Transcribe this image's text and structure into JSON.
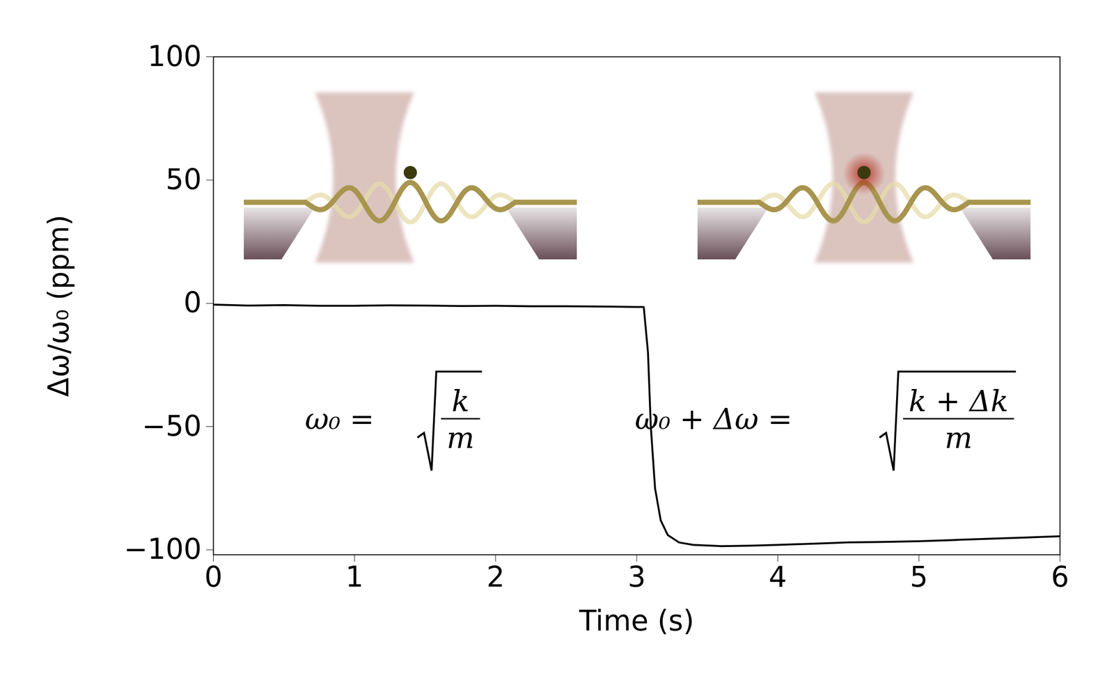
{
  "chart_data": {
    "type": "line",
    "xlabel": "Time (s)",
    "ylabel": "Δω/ω₀ (ppm)",
    "xlim": [
      0,
      6
    ],
    "xticks": [
      0,
      1,
      2,
      3,
      4,
      5,
      6
    ],
    "ylim": [
      -102,
      100
    ],
    "yticks": [
      {
        "value": -100,
        "label": "−100"
      },
      {
        "value": -50,
        "label": "−50"
      },
      0,
      50,
      100
    ],
    "grid": false,
    "color": "#000000",
    "x": [
      0,
      0.25,
      0.5,
      0.75,
      1.0,
      1.25,
      1.5,
      1.75,
      2.0,
      2.25,
      2.5,
      2.75,
      3.0,
      3.05,
      3.08,
      3.1,
      3.13,
      3.17,
      3.22,
      3.3,
      3.4,
      3.6,
      3.8,
      4.0,
      4.25,
      4.5,
      4.75,
      5.0,
      5.25,
      5.5,
      5.75,
      6.0
    ],
    "values": [
      -0.5,
      -0.9,
      -0.7,
      -1.0,
      -1.0,
      -0.8,
      -0.9,
      -1.1,
      -1.0,
      -1.2,
      -1.2,
      -1.3,
      -1.5,
      -1.5,
      -20,
      -50,
      -75,
      -88,
      -94,
      -97,
      -98,
      -98.5,
      -98.3,
      -98,
      -97.5,
      -97,
      -96.8,
      -96.5,
      -96,
      -95.5,
      -95,
      -94.5
    ],
    "annotations": [
      {
        "lhs": "ω₀ =",
        "numerator": "k",
        "denominator": "m"
      },
      {
        "lhs": "ω₀ + Δω =",
        "numerator": "k + Δk",
        "denominator": "m"
      }
    ]
  }
}
